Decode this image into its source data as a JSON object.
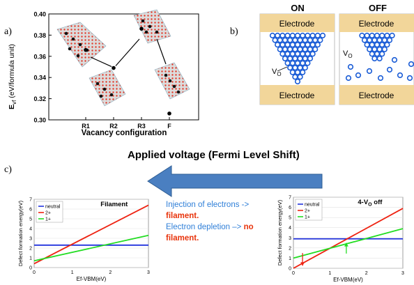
{
  "panel_labels": {
    "a": "a)",
    "b": "b)",
    "c": "c)"
  },
  "panel_a": {
    "y_axis_label": "E vf (eV/formula unit)",
    "y_axis_label_main": "E",
    "y_axis_label_sub": "vf",
    "y_axis_label_rest": "(eV/formula unit)",
    "x_axis_label": "Vacancy configuration"
  },
  "panel_b": {
    "on_label": "ON",
    "off_label": "OFF",
    "electrode_label": "Electrode",
    "vacancy_label_main": "V",
    "vacancy_label_sub": "O"
  },
  "panel_c": {
    "voltage_title": "Applied voltage (Fermi Level Shift)",
    "caption": {
      "line1": "Injection of electrons ->",
      "line2": "filament.",
      "line3": "Electron depletion –> ",
      "line3_red": "no",
      "line4": "filament."
    },
    "colors": {
      "neutral": "#2233dd",
      "two_plus": "#ee2211",
      "one_plus": "#22dd22",
      "arrow": "#4a7fc1",
      "electrode": "#f2d69a",
      "vacancy": "#1a5cd6"
    }
  },
  "chart_data": [
    {
      "type": "scatter",
      "title": "",
      "xlabel": "Vacancy configuration",
      "ylabel": "E vf (eV/formula unit)",
      "categories": [
        "R1",
        "R2",
        "R3",
        "F"
      ],
      "y_ticks": [
        "0.30",
        "0.32",
        "0.34",
        "0.36",
        "0.38",
        "0.40"
      ],
      "ylim": [
        0.3,
        0.4
      ],
      "series": [
        {
          "values": [
            0.366,
            0.349,
            0.386,
            0.306
          ]
        }
      ]
    },
    {
      "type": "line",
      "title": "Filament",
      "xlabel": "Ef-VBM(eV)",
      "ylabel": "Defect formation energy(eV)",
      "xlim": [
        0,
        3
      ],
      "ylim": [
        0,
        7
      ],
      "x_ticks": [
        "0",
        "1",
        "2",
        "3"
      ],
      "y_ticks": [
        "0",
        "1",
        "2",
        "3",
        "4",
        "5",
        "6",
        "7"
      ],
      "legend": "top-left",
      "series": [
        {
          "name": "neutral",
          "x": [
            0,
            3
          ],
          "values": [
            2.3,
            2.3
          ]
        },
        {
          "name": "2+",
          "x": [
            0,
            3
          ],
          "values": [
            0.4,
            6.4
          ]
        },
        {
          "name": "1+",
          "x": [
            0,
            3
          ],
          "values": [
            0.7,
            3.3
          ]
        }
      ]
    },
    {
      "type": "line",
      "title": "4-VO off",
      "title_main": "4-V",
      "title_sub": "O",
      "title_rest": " off",
      "xlabel": "Ef-VBM(eV)",
      "ylabel": "Defect formation energy(eV)",
      "xlim": [
        0,
        3
      ],
      "ylim": [
        0,
        7
      ],
      "x_ticks": [
        "0",
        "1",
        "2",
        "3"
      ],
      "y_ticks": [
        "0",
        "1",
        "2",
        "3",
        "4",
        "5",
        "6",
        "7"
      ],
      "legend": "top-left",
      "series": [
        {
          "name": "neutral",
          "x": [
            0,
            3
          ],
          "values": [
            2.9,
            2.9
          ]
        },
        {
          "name": "2+",
          "x": [
            0,
            3
          ],
          "values": [
            0.0,
            5.9
          ]
        },
        {
          "name": "1+",
          "x": [
            0,
            3
          ],
          "values": [
            1.0,
            3.9
          ]
        }
      ]
    }
  ]
}
